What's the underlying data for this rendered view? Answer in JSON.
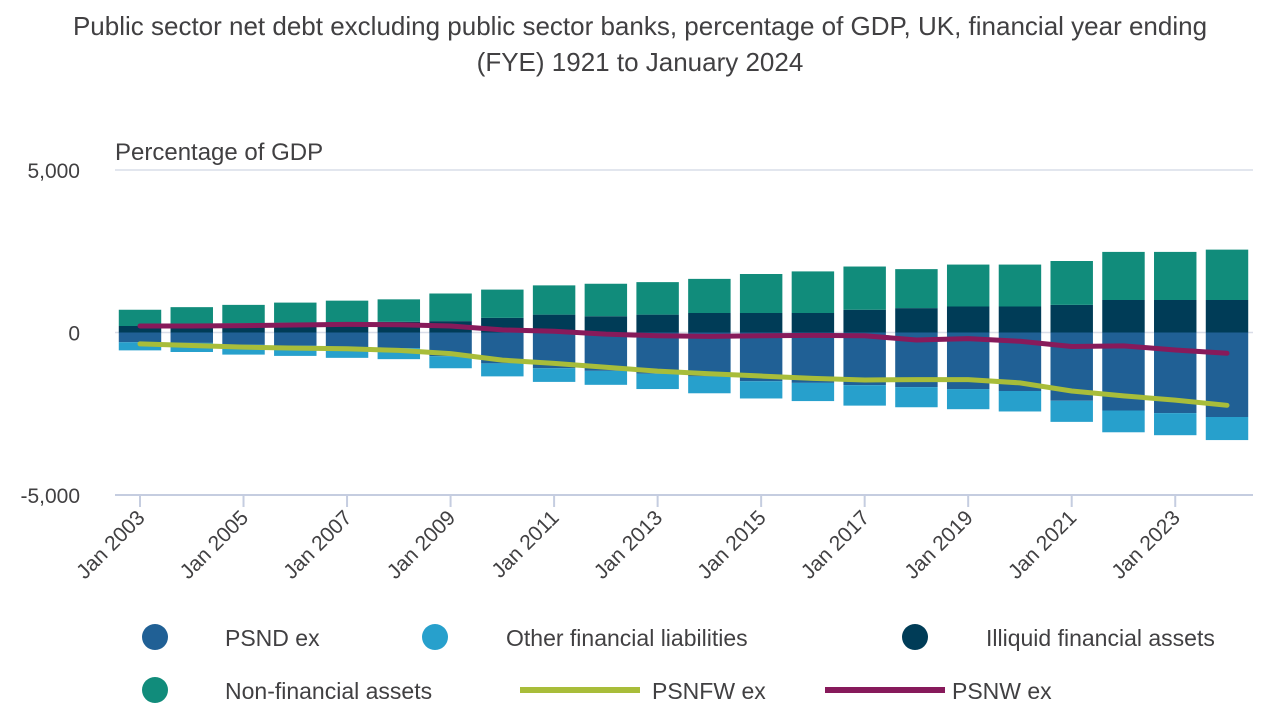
{
  "chart_data": {
    "type": "bar",
    "title": "Public sector net debt excluding public sector banks, percentage of GDP, UK, financial year ending (FYE) 1921 to January 2024",
    "ylabel": "Percentage of GDP",
    "xlabel": "",
    "ylim": [
      -5000,
      5000
    ],
    "yticks": [
      5000,
      0,
      -5000
    ],
    "ytick_labels": [
      "5,000",
      "0",
      "-5,000"
    ],
    "stacked": true,
    "grid": true,
    "legend_position": "bottom",
    "categories": [
      "Jan 2003",
      "Jan 2004",
      "Jan 2005",
      "Jan 2006",
      "Jan 2007",
      "Jan 2008",
      "Jan 2009",
      "Jan 2010",
      "Jan 2011",
      "Jan 2012",
      "Jan 2013",
      "Jan 2014",
      "Jan 2015",
      "Jan 2016",
      "Jan 2017",
      "Jan 2018",
      "Jan 2019",
      "Jan 2020",
      "Jan 2021",
      "Jan 2022",
      "Jan 2023",
      "Jan 2024"
    ],
    "x_tick_labels": [
      "Jan 2003",
      "Jan 2005",
      "Jan 2007",
      "Jan 2009",
      "Jan 2011",
      "Jan 2013",
      "Jan 2015",
      "Jan 2017",
      "Jan 2019",
      "Jan 2021",
      "Jan 2023"
    ],
    "series": [
      {
        "name": "PSND ex",
        "kind": "bar",
        "color": "#206095",
        "values": [
          -300,
          -320,
          -380,
          -410,
          -450,
          -480,
          -730,
          -950,
          -1100,
          -1180,
          -1270,
          -1350,
          -1500,
          -1550,
          -1620,
          -1680,
          -1740,
          -1800,
          -2100,
          -2400,
          -2480,
          -2600
        ]
      },
      {
        "name": "Other financial liabilities",
        "kind": "bar",
        "color": "#27a0cc",
        "values": [
          -250,
          -280,
          -300,
          -310,
          -330,
          -340,
          -370,
          -400,
          -420,
          -430,
          -470,
          -520,
          -530,
          -560,
          -630,
          -620,
          -620,
          -630,
          -650,
          -670,
          -680,
          -710
        ]
      },
      {
        "name": "Illiquid financial assets",
        "kind": "bar",
        "color": "#003c57",
        "values": [
          200,
          250,
          280,
          300,
          320,
          330,
          350,
          450,
          550,
          500,
          550,
          600,
          600,
          600,
          700,
          750,
          800,
          800,
          850,
          1000,
          1000,
          1000
        ]
      },
      {
        "name": "Non-financial assets",
        "kind": "bar",
        "color": "#118c7b",
        "values": [
          500,
          530,
          570,
          620,
          660,
          690,
          850,
          870,
          900,
          1000,
          1000,
          1050,
          1200,
          1280,
          1330,
          1200,
          1290,
          1290,
          1350,
          1480,
          1480,
          1550
        ]
      },
      {
        "name": "PSNFW ex",
        "kind": "line",
        "color": "#a8bd3a",
        "values": [
          -350,
          -400,
          -450,
          -480,
          -500,
          -550,
          -650,
          -850,
          -950,
          -1070,
          -1190,
          -1270,
          -1340,
          -1410,
          -1460,
          -1450,
          -1450,
          -1550,
          -1800,
          -1950,
          -2080,
          -2240
        ]
      },
      {
        "name": "PSNW ex",
        "kind": "line",
        "color": "#871a5b",
        "values": [
          200,
          200,
          210,
          230,
          250,
          240,
          200,
          80,
          40,
          -50,
          -100,
          -120,
          -100,
          -90,
          -100,
          -230,
          -190,
          -270,
          -430,
          -410,
          -540,
          -640
        ]
      }
    ]
  }
}
